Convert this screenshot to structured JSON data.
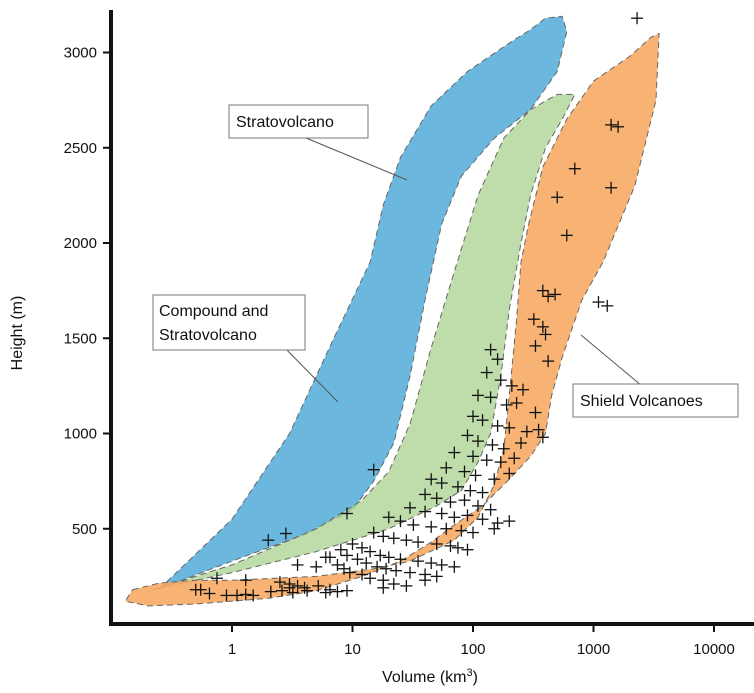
{
  "chart_data": {
    "type": "scatter",
    "title": "",
    "xlabel": "Volume (km",
    "xlabel_sup": "3",
    "xlabel_end": ")",
    "ylabel": "Height (m)",
    "xscale": "log",
    "xlim": [
      0.1,
      30000
    ],
    "ylim": [
      0,
      3250
    ],
    "x_ticks": [
      1,
      10,
      100,
      1000,
      10000
    ],
    "x_tick_labels": [
      "1",
      "10",
      "100",
      "1000",
      "10000"
    ],
    "y_ticks": [
      500,
      1000,
      1500,
      2000,
      2500,
      3000
    ],
    "y_tick_labels": [
      "500",
      "1000",
      "1500",
      "2000",
      "2500",
      "3000"
    ],
    "grid": false,
    "colors": {
      "stratovolcano": "#6cb7de",
      "compound": "#a9d18e",
      "shield": "#f7a861",
      "overlap_blue_green": "#3fa6a6",
      "overlap_orange_green": "#b9a85d"
    },
    "regions": [
      {
        "name": "Stratovolcano",
        "polygon": [
          [
            0.25,
            185
          ],
          [
            1,
            550
          ],
          [
            3,
            1000
          ],
          [
            7,
            1500
          ],
          [
            14,
            1900
          ],
          [
            18,
            2200
          ],
          [
            25,
            2450
          ],
          [
            45,
            2720
          ],
          [
            90,
            2900
          ],
          [
            200,
            3050
          ],
          [
            300,
            3120
          ],
          [
            400,
            3180
          ],
          [
            550,
            3190
          ],
          [
            600,
            3110
          ],
          [
            500,
            2900
          ],
          [
            300,
            2700
          ],
          [
            150,
            2550
          ],
          [
            80,
            2350
          ],
          [
            55,
            2100
          ],
          [
            40,
            1700
          ],
          [
            30,
            1300
          ],
          [
            22,
            950
          ],
          [
            15,
            750
          ],
          [
            10,
            600
          ],
          [
            4,
            470
          ],
          [
            1,
            330
          ]
        ]
      },
      {
        "name": "Compound and Stratovolcano",
        "polygon": [
          [
            0.22,
            180
          ],
          [
            1,
            310
          ],
          [
            5,
            500
          ],
          [
            12,
            650
          ],
          [
            20,
            800
          ],
          [
            30,
            1050
          ],
          [
            45,
            1450
          ],
          [
            70,
            1850
          ],
          [
            110,
            2250
          ],
          [
            180,
            2550
          ],
          [
            300,
            2700
          ],
          [
            500,
            2780
          ],
          [
            700,
            2780
          ],
          [
            550,
            2650
          ],
          [
            400,
            2500
          ],
          [
            300,
            2250
          ],
          [
            250,
            2000
          ],
          [
            200,
            1650
          ],
          [
            170,
            1300
          ],
          [
            140,
            1000
          ],
          [
            110,
            850
          ],
          [
            80,
            700
          ],
          [
            50,
            620
          ],
          [
            20,
            500
          ],
          [
            5,
            380
          ],
          [
            1,
            270
          ]
        ]
      },
      {
        "name": "Shield Volcanoes",
        "polygon": [
          [
            0.15,
            180
          ],
          [
            0.25,
            215
          ],
          [
            0.5,
            230
          ],
          [
            1,
            230
          ],
          [
            5,
            250
          ],
          [
            15,
            290
          ],
          [
            30,
            330
          ],
          [
            70,
            440
          ],
          [
            110,
            560
          ],
          [
            150,
            730
          ],
          [
            180,
            920
          ],
          [
            200,
            1200
          ],
          [
            230,
            1600
          ],
          [
            250,
            1900
          ],
          [
            290,
            2100
          ],
          [
            380,
            2400
          ],
          [
            600,
            2650
          ],
          [
            1000,
            2850
          ],
          [
            2000,
            2980
          ],
          [
            3000,
            3080
          ],
          [
            3500,
            3100
          ],
          [
            3300,
            2750
          ],
          [
            2200,
            2300
          ],
          [
            1200,
            1900
          ],
          [
            800,
            1700
          ],
          [
            550,
            1400
          ],
          [
            450,
            1200
          ],
          [
            400,
            1000
          ],
          [
            300,
            880
          ],
          [
            200,
            760
          ],
          [
            120,
            620
          ],
          [
            70,
            520
          ],
          [
            45,
            430
          ],
          [
            25,
            330
          ],
          [
            12,
            250
          ],
          [
            5,
            175
          ],
          [
            2,
            135
          ],
          [
            1,
            120
          ],
          [
            0.5,
            105
          ],
          [
            0.2,
            95
          ],
          [
            0.13,
            120
          ]
        ]
      }
    ],
    "series": [
      {
        "marker": "+",
        "points": [
          [
            2300,
            3180
          ],
          [
            1400,
            2620
          ],
          [
            1600,
            2610
          ],
          [
            700,
            2390
          ],
          [
            1400,
            2290
          ],
          [
            500,
            2240
          ],
          [
            600,
            2040
          ],
          [
            380,
            1750
          ],
          [
            420,
            1720
          ],
          [
            480,
            1730
          ],
          [
            1100,
            1690
          ],
          [
            1300,
            1670
          ],
          [
            320,
            1600
          ],
          [
            380,
            1560
          ],
          [
            400,
            1520
          ],
          [
            330,
            1460
          ],
          [
            140,
            1440
          ],
          [
            160,
            1390
          ],
          [
            420,
            1380
          ],
          [
            130,
            1320
          ],
          [
            170,
            1280
          ],
          [
            210,
            1250
          ],
          [
            260,
            1230
          ],
          [
            110,
            1200
          ],
          [
            140,
            1190
          ],
          [
            190,
            1150
          ],
          [
            230,
            1160
          ],
          [
            330,
            1110
          ],
          [
            100,
            1090
          ],
          [
            120,
            1070
          ],
          [
            160,
            1040
          ],
          [
            200,
            1030
          ],
          [
            280,
            1010
          ],
          [
            350,
            1020
          ],
          [
            90,
            990
          ],
          [
            110,
            960
          ],
          [
            145,
            940
          ],
          [
            180,
            920
          ],
          [
            250,
            950
          ],
          [
            380,
            980
          ],
          [
            70,
            900
          ],
          [
            100,
            880
          ],
          [
            130,
            860
          ],
          [
            170,
            850
          ],
          [
            220,
            870
          ],
          [
            60,
            820
          ],
          [
            85,
            800
          ],
          [
            105,
            780
          ],
          [
            150,
            760
          ],
          [
            200,
            790
          ],
          [
            15,
            810
          ],
          [
            45,
            760
          ],
          [
            55,
            740
          ],
          [
            75,
            720
          ],
          [
            95,
            700
          ],
          [
            120,
            690
          ],
          [
            40,
            680
          ],
          [
            50,
            660
          ],
          [
            65,
            640
          ],
          [
            85,
            650
          ],
          [
            110,
            620
          ],
          [
            140,
            600
          ],
          [
            30,
            610
          ],
          [
            40,
            590
          ],
          [
            55,
            580
          ],
          [
            70,
            560
          ],
          [
            90,
            570
          ],
          [
            120,
            550
          ],
          [
            160,
            530
          ],
          [
            200,
            540
          ],
          [
            9,
            580
          ],
          [
            20,
            560
          ],
          [
            25,
            540
          ],
          [
            32,
            520
          ],
          [
            45,
            510
          ],
          [
            60,
            500
          ],
          [
            80,
            490
          ],
          [
            100,
            480
          ],
          [
            150,
            500
          ],
          [
            2.8,
            475
          ],
          [
            15,
            480
          ],
          [
            18,
            460
          ],
          [
            22,
            450
          ],
          [
            28,
            440
          ],
          [
            35,
            430
          ],
          [
            50,
            420
          ],
          [
            65,
            410
          ],
          [
            75,
            400
          ],
          [
            90,
            390
          ],
          [
            2,
            440
          ],
          [
            10,
            420
          ],
          [
            12,
            400
          ],
          [
            14,
            380
          ],
          [
            17,
            360
          ],
          [
            20,
            350
          ],
          [
            25,
            340
          ],
          [
            35,
            330
          ],
          [
            45,
            320
          ],
          [
            55,
            310
          ],
          [
            70,
            300
          ],
          [
            8,
            390
          ],
          [
            9,
            360
          ],
          [
            11,
            340
          ],
          [
            13,
            320
          ],
          [
            16,
            300
          ],
          [
            19,
            290
          ],
          [
            23,
            280
          ],
          [
            30,
            270
          ],
          [
            40,
            260
          ],
          [
            50,
            250
          ],
          [
            6.5,
            350
          ],
          [
            7.5,
            310
          ],
          [
            8.5,
            290
          ],
          [
            9.5,
            270
          ],
          [
            12,
            260
          ],
          [
            14,
            240
          ],
          [
            18,
            230
          ],
          [
            22,
            210
          ],
          [
            28,
            200
          ],
          [
            40,
            230
          ],
          [
            0.75,
            240
          ],
          [
            1.3,
            230
          ],
          [
            2.5,
            220
          ],
          [
            3,
            210
          ],
          [
            3.5,
            200
          ],
          [
            4,
            190
          ],
          [
            5.2,
            200
          ],
          [
            6.5,
            180
          ],
          [
            7.5,
            170
          ],
          [
            18,
            190
          ],
          [
            0.5,
            180
          ],
          [
            0.65,
            160
          ],
          [
            0.9,
            150
          ],
          [
            1.1,
            150
          ],
          [
            1.3,
            155
          ],
          [
            1.5,
            150
          ],
          [
            2.1,
            170
          ],
          [
            2.6,
            175
          ],
          [
            3.2,
            165
          ],
          [
            4.2,
            175
          ],
          [
            6,
            165
          ],
          [
            9,
            175
          ],
          [
            3.5,
            310
          ],
          [
            5,
            300
          ],
          [
            0.55,
            180
          ],
          [
            6,
            350
          ],
          [
            3,
            190
          ]
        ]
      }
    ],
    "annotations": [
      {
        "text": "Stratovolcano",
        "lines": [
          "Stratovolcano"
        ]
      },
      {
        "text": "Compound and Stratovolcano",
        "lines": [
          "Compound and",
          "Stratovolcano"
        ]
      },
      {
        "text": "Shield Volcanoes",
        "lines": [
          "Shield Volcanoes"
        ]
      }
    ]
  }
}
